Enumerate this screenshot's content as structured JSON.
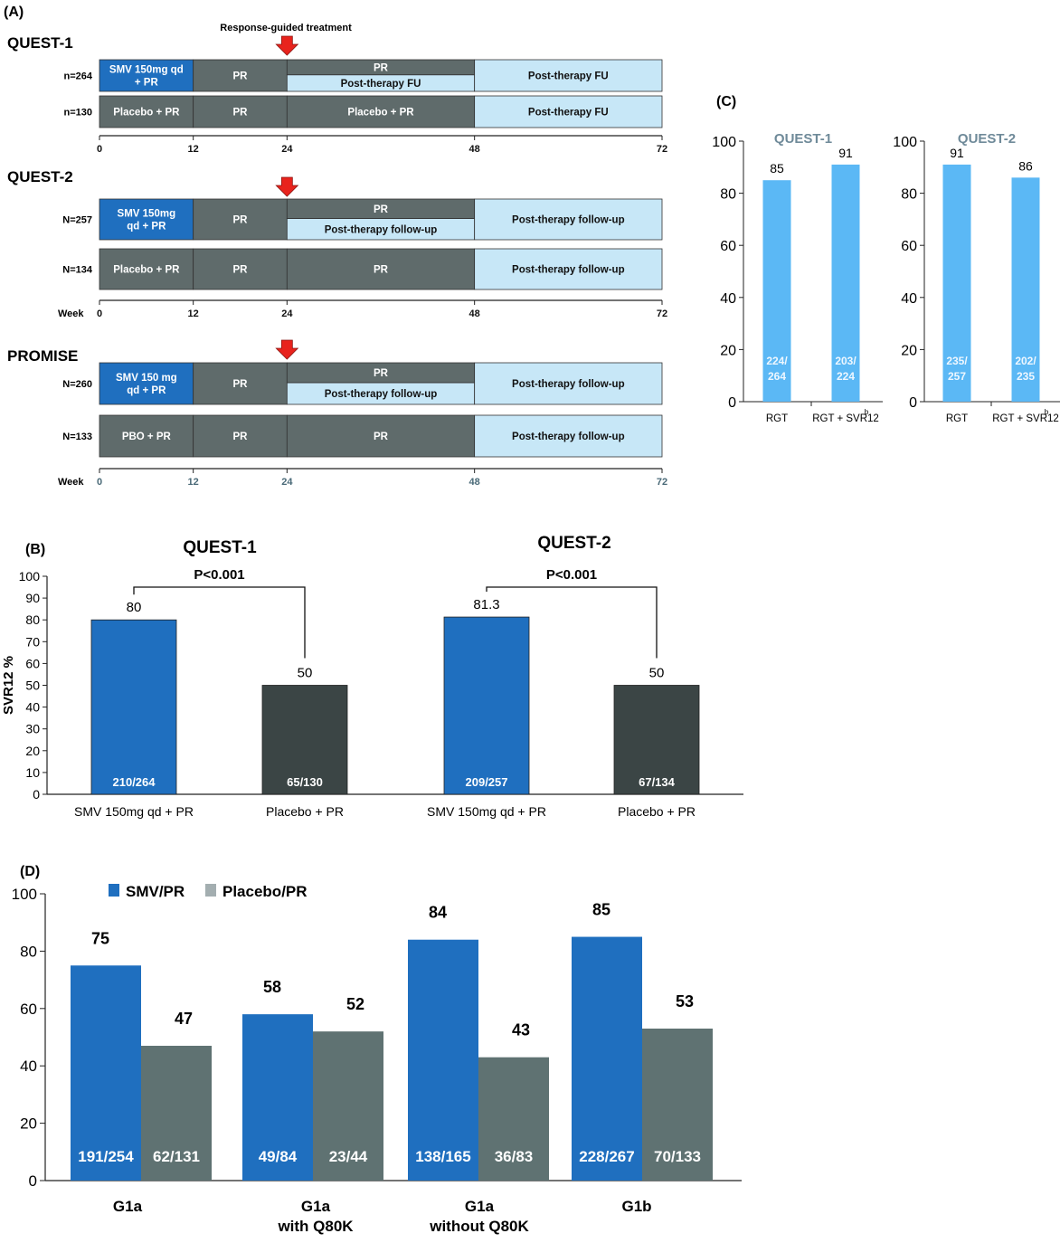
{
  "panel_labels": {
    "a": "(A)",
    "b": "(B)",
    "c": "(C)",
    "d": "(D)"
  },
  "panel_a": {
    "rgt_label": "Response-guided treatment",
    "trials": [
      {
        "name": "QUEST-1",
        "axis_ticks": [
          "0",
          "12",
          "24",
          "48",
          "72"
        ],
        "axis_prefix": "",
        "rows": [
          {
            "n": "n=264",
            "segments": [
              "SMV 150mg qd\n+ PR",
              "PR"
            ],
            "split_top": "PR",
            "split_bottom": "Post-therapy FU",
            "tail": "Post-therapy FU"
          },
          {
            "n": "n=130",
            "segments": [
              "Placebo + PR",
              "PR"
            ],
            "mid": "Placebo + PR",
            "tail": "Post-therapy FU"
          }
        ]
      },
      {
        "name": "QUEST-2",
        "axis_ticks": [
          "0",
          "12",
          "24",
          "48",
          "72"
        ],
        "axis_prefix": "Week",
        "rows": [
          {
            "n": "N=257",
            "segments": [
              "SMV 150mg\nqd + PR",
              "PR"
            ],
            "split_top": "PR",
            "split_bottom": "Post-therapy follow-up",
            "tail": "Post-therapy follow-up"
          },
          {
            "n": "N=134",
            "segments": [
              "Placebo + PR",
              "PR"
            ],
            "mid": "PR",
            "tail": "Post-therapy follow-up"
          }
        ]
      },
      {
        "name": "PROMISE",
        "axis_ticks": [
          "0",
          "12",
          "24",
          "48",
          "72"
        ],
        "axis_prefix": "Week",
        "rows": [
          {
            "n": "N=260",
            "segments": [
              "SMV 150 mg\nqd + PR",
              "PR"
            ],
            "split_top": "PR",
            "split_bottom": "Post-therapy follow-up",
            "tail": "Post-therapy follow-up"
          },
          {
            "n": "N=133",
            "segments": [
              "PBO + PR",
              "PR"
            ],
            "mid": "PR",
            "tail": "Post-therapy follow-up"
          }
        ]
      }
    ]
  },
  "chart_data": [
    {
      "id": "B-QUEST-1",
      "type": "bar",
      "title": "QUEST-1",
      "ylabel": "SVR12 %",
      "ylim": [
        0,
        100
      ],
      "yticks": [
        0,
        10,
        20,
        30,
        40,
        50,
        60,
        70,
        80,
        90,
        100
      ],
      "categories": [
        "SMV 150mg qd + PR",
        "Placebo + PR"
      ],
      "values": [
        80,
        50
      ],
      "value_labels": [
        "80",
        "50"
      ],
      "bar_labels": [
        "210/264",
        "65/130"
      ],
      "significance": "P<0.001",
      "colors": [
        "#1f6fbf",
        "#3b4545"
      ]
    },
    {
      "id": "B-QUEST-2",
      "type": "bar",
      "title": "QUEST-2",
      "ylim": [
        0,
        100
      ],
      "categories": [
        "SMV 150mg qd + PR",
        "Placebo + PR"
      ],
      "values": [
        81.3,
        50
      ],
      "value_labels": [
        "81.3",
        "50"
      ],
      "bar_labels": [
        "209/257",
        "67/134"
      ],
      "significance": "P<0.001",
      "colors": [
        "#1f6fbf",
        "#3b4545"
      ]
    },
    {
      "id": "C-QUEST-1",
      "type": "bar",
      "title": "QUEST-1",
      "ylim": [
        0,
        100
      ],
      "yticks": [
        0,
        20,
        40,
        60,
        80,
        100
      ],
      "categories": [
        "RGT",
        "RGT + SVR12"
      ],
      "category_superscript": [
        "",
        "b"
      ],
      "values": [
        85,
        91
      ],
      "value_labels": [
        "85",
        "91"
      ],
      "bar_labels": [
        [
          "224/",
          "264"
        ],
        [
          "203/",
          "224"
        ]
      ],
      "colors": [
        "#5bb8f5",
        "#5bb8f5"
      ]
    },
    {
      "id": "C-QUEST-2",
      "type": "bar",
      "title": "QUEST-2",
      "ylim": [
        0,
        100
      ],
      "yticks": [
        0,
        20,
        40,
        60,
        80,
        100
      ],
      "categories": [
        "RGT",
        "RGT + SVR12"
      ],
      "category_superscript": [
        "",
        "b"
      ],
      "values": [
        91,
        86
      ],
      "value_labels": [
        "91",
        "86"
      ],
      "bar_labels": [
        [
          "235/",
          "257"
        ],
        [
          "202/",
          "235"
        ]
      ],
      "colors": [
        "#5bb8f5",
        "#5bb8f5"
      ]
    },
    {
      "id": "D",
      "type": "bar",
      "ylim": [
        0,
        100
      ],
      "yticks": [
        0,
        20,
        40,
        60,
        80,
        100
      ],
      "categories": [
        [
          "G1a"
        ],
        [
          "G1a",
          "with Q80K"
        ],
        [
          "G1a",
          "without Q80K"
        ],
        [
          "G1b"
        ]
      ],
      "series": [
        {
          "name": "SMV/PR",
          "values": [
            75,
            58,
            84,
            85
          ],
          "bar_labels": [
            "191/254",
            "49/84",
            "138/165",
            "228/267"
          ],
          "color": "#1f6fbf"
        },
        {
          "name": "Placebo/PR",
          "values": [
            47,
            52,
            43,
            53
          ],
          "bar_labels": [
            "62/131",
            "23/44",
            "36/83",
            "70/133"
          ],
          "color": "#5f7272"
        }
      ],
      "legend_placement": "top-left"
    }
  ]
}
